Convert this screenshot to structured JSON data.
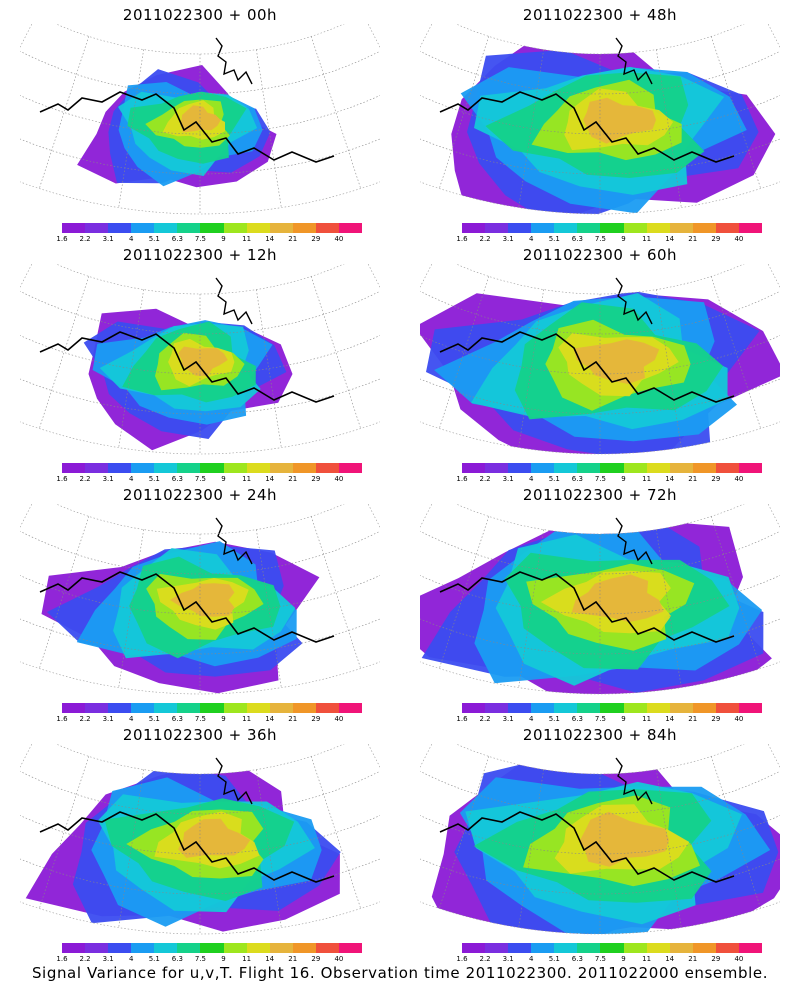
{
  "colorbar": {
    "labels": [
      "1.6",
      "2.2",
      "3.1",
      "4",
      "5.1",
      "6.3",
      "7.5",
      "9",
      "11",
      "14",
      "21",
      "29",
      "40"
    ],
    "colors": [
      "#8b1ad6",
      "#7a2ee0",
      "#3b4cf0",
      "#1a9cf2",
      "#14c8d8",
      "#14d28a",
      "#1fd01f",
      "#9ee61e",
      "#dcdc1e",
      "#e6b43c",
      "#f09628",
      "#f0503c",
      "#f01478"
    ]
  },
  "panels": [
    {
      "id": "p00",
      "title": "2011022300 + 00h",
      "spread": 0.25,
      "hot": 0.45
    },
    {
      "id": "p48",
      "title": "2011022300 + 48h",
      "spread": 0.85,
      "hot": 0.5
    },
    {
      "id": "p12",
      "title": "2011022300 + 12h",
      "spread": 0.35,
      "hot": 0.5
    },
    {
      "id": "p60",
      "title": "2011022300 + 60h",
      "spread": 0.9,
      "hot": 0.55
    },
    {
      "id": "p24",
      "title": "2011022300 + 24h",
      "spread": 0.55,
      "hot": 0.55
    },
    {
      "id": "p72",
      "title": "2011022300 + 72h",
      "spread": 0.95,
      "hot": 0.6
    },
    {
      "id": "p36",
      "title": "2011022300 + 36h",
      "spread": 0.7,
      "hot": 0.55
    },
    {
      "id": "p84",
      "title": "2011022300 + 84h",
      "spread": 1.0,
      "hot": 0.65
    }
  ],
  "footer": "Signal Variance for u,v,T. Flight 16. Observation time 2011022300. 2011022000 ensemble."
}
